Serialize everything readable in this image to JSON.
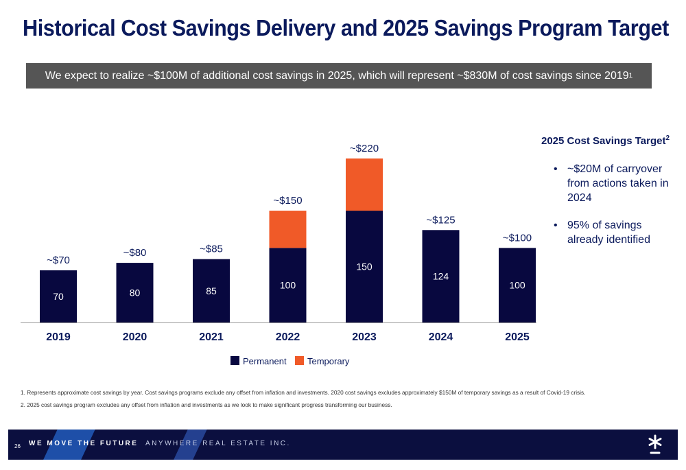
{
  "title": "Historical Cost Savings Delivery and 2025 Savings Program Target",
  "banner": {
    "text": "We expect to realize ~$100M of additional cost savings in 2025, which will represent ~$830M of cost savings since 2019",
    "sup": "1"
  },
  "chart_data": {
    "type": "bar",
    "stacked": true,
    "categories": [
      "2019",
      "2020",
      "2021",
      "2022",
      "2023",
      "2024",
      "2025"
    ],
    "series": [
      {
        "name": "Permanent",
        "color": "#08083f",
        "values": [
          70,
          80,
          85,
          100,
          150,
          124,
          100
        ]
      },
      {
        "name": "Temporary",
        "color": "#f05a28",
        "values": [
          0,
          0,
          0,
          50,
          70,
          0,
          0
        ]
      }
    ],
    "totals_labels": [
      "~$70",
      "~$80",
      "~$85",
      "~$150",
      "~$220",
      "~$125",
      "~$100"
    ],
    "segment_labels": [
      "70",
      "80",
      "85",
      "100",
      "150",
      "124",
      "100"
    ],
    "legend_position": "bottom",
    "grid": false
  },
  "side": {
    "title": "2025 Cost Savings Target",
    "title_sup": "2",
    "bullets": [
      "~$20M of carryover from actions taken in 2024",
      "95% of savings already identified"
    ]
  },
  "footnotes": [
    "1.    Represents approximate cost savings by year. Cost savings programs exclude any offset from inflation and investments. 2020 cost savings excludes approximately $150M of temporary savings as a result of Covid-19 crisis.",
    "2.    2025 cost savings program excludes any offset from inflation and investments as we look to make significant progress transforming our business."
  ],
  "footer": {
    "page": "26",
    "motto_bold": "WE MOVE THE FUTURE",
    "motto_rest": "ANYWHERE REAL ESTATE INC."
  }
}
